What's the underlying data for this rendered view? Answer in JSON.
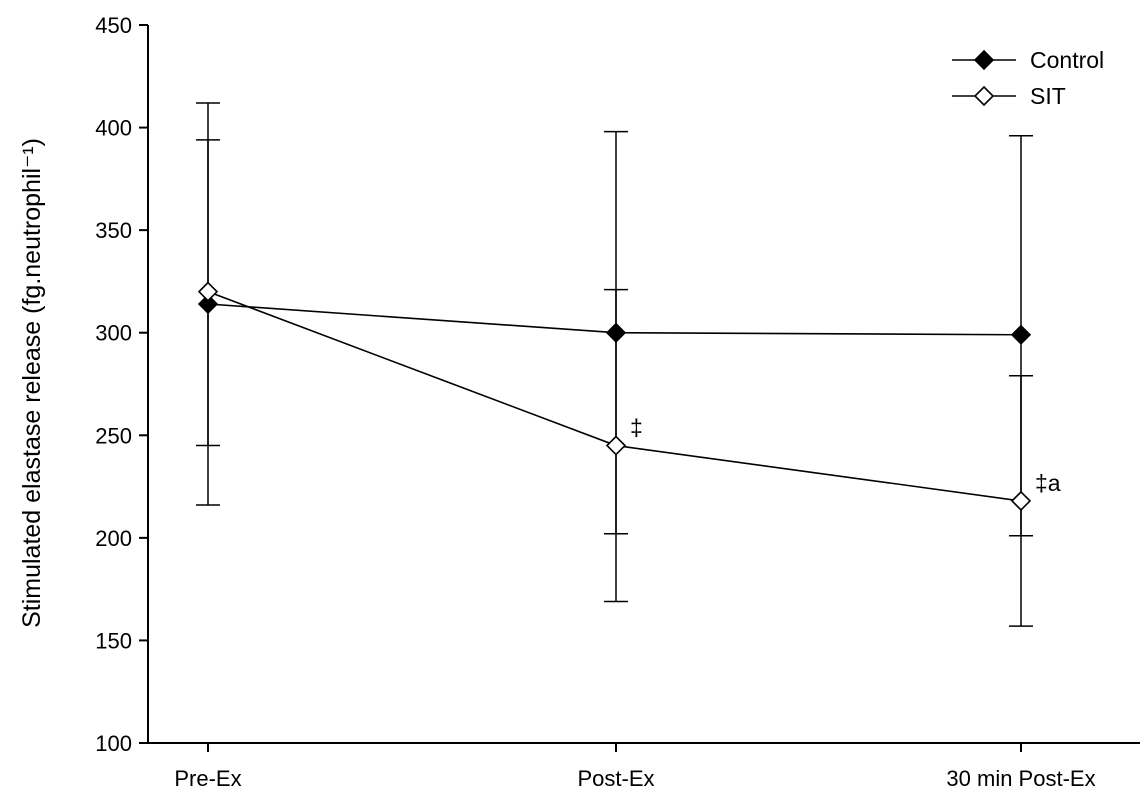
{
  "chart_data": {
    "type": "line",
    "title": "",
    "xlabel": "",
    "ylabel": "Stimulated elastase release (fg.neutrophil⁻¹)",
    "categories": [
      "Pre-Ex",
      "Post-Ex",
      "30 min Post-Ex"
    ],
    "ylim": [
      100,
      450
    ],
    "yticks": [
      100,
      150,
      200,
      250,
      300,
      350,
      400,
      450
    ],
    "grid": false,
    "legend_position": "top-right",
    "series": [
      {
        "name": "Control",
        "marker": "filled-diamond",
        "color": "#000000",
        "values": [
          314,
          300,
          299
        ],
        "err_low": [
          216,
          202,
          201
        ],
        "err_high": [
          412,
          398,
          396
        ]
      },
      {
        "name": "SIT",
        "marker": "open-diamond",
        "color": "#000000",
        "values": [
          320,
          245,
          218
        ],
        "err_low": [
          245,
          169,
          157
        ],
        "err_high": [
          394,
          321,
          279
        ]
      }
    ],
    "annotations": [
      {
        "series": 1,
        "index": 1,
        "text": "‡"
      },
      {
        "series": 1,
        "index": 2,
        "text": "‡a"
      }
    ]
  }
}
